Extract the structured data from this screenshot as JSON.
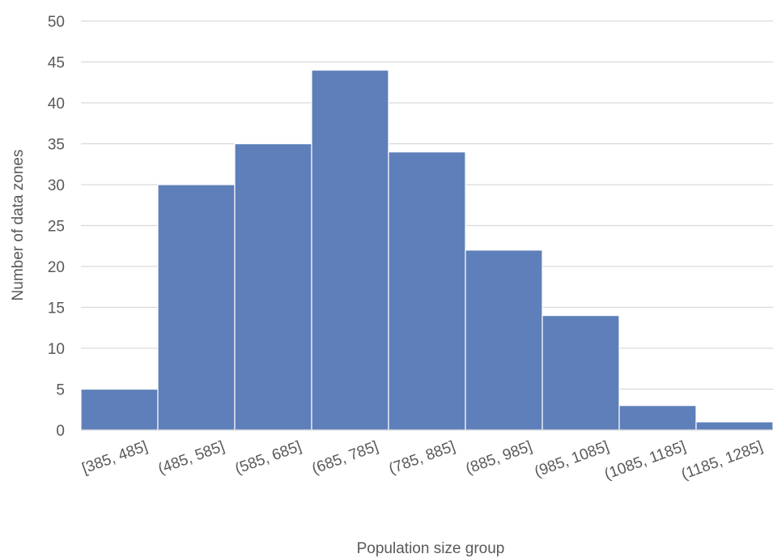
{
  "chart_data": {
    "type": "bar",
    "title": "",
    "xlabel": "Population size group",
    "ylabel": "Number of data zones",
    "categories": [
      "[385, 485]",
      "(485, 585]",
      "(585, 685]",
      "(685, 785]",
      "(785, 885]",
      "(885, 985]",
      "(985, 1085]",
      "(1085, 1185]",
      "(1185, 1285]"
    ],
    "values": [
      5,
      30,
      35,
      44,
      34,
      22,
      14,
      3,
      1
    ],
    "ylim": [
      0,
      50
    ],
    "yticks": [
      "0",
      "5",
      "10",
      "15",
      "20",
      "25",
      "30",
      "35",
      "40",
      "45",
      "50"
    ],
    "grid": true,
    "legend": "none",
    "colors": {
      "bar": "#5e7fba",
      "grid": "#d9d9d9",
      "text": "#595959"
    }
  }
}
